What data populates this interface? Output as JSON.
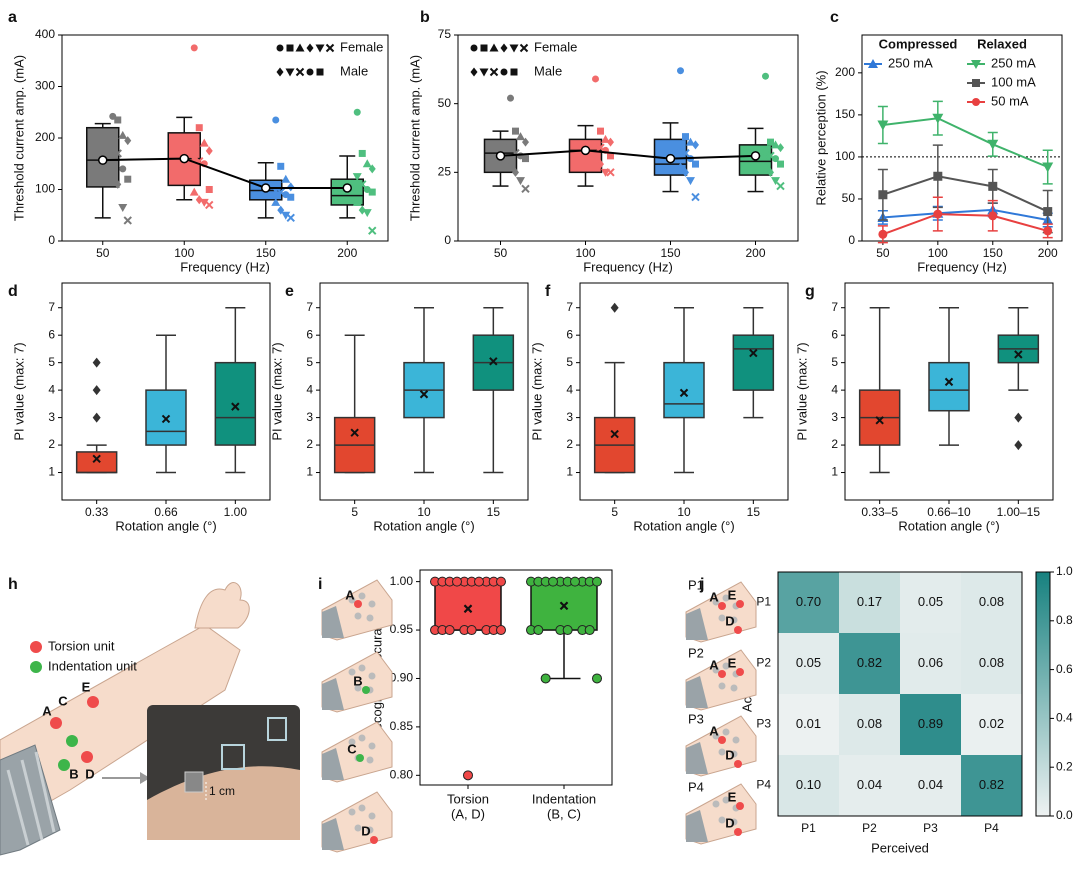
{
  "chart_data": [
    {
      "type": "box",
      "panel": "a",
      "ylabel": "Threshold current amp. (mA)",
      "xlabel": "Frequency (Hz)",
      "categories": [
        "50",
        "100",
        "150",
        "200"
      ],
      "colors": [
        "#7a7a7a",
        "#f26b6b",
        "#4a8fe0",
        "#4fbf7f"
      ],
      "ylim": [
        0,
        400
      ],
      "yticks": [
        0,
        100,
        200,
        300,
        400
      ],
      "mean_marker": "circle",
      "mean_line": true,
      "legend": [
        "Female",
        "Male"
      ],
      "boxes": [
        {
          "whisker_low": 45,
          "q1": 105,
          "median": 157,
          "q3": 220,
          "whisker_high": 228,
          "mean": 157
        },
        {
          "whisker_low": 80,
          "q1": 108,
          "median": 160,
          "q3": 210,
          "whisker_high": 240,
          "mean": 160
        },
        {
          "whisker_low": 45,
          "q1": 80,
          "median": 98,
          "q3": 118,
          "whisker_high": 152,
          "mean": 103
        },
        {
          "whisker_low": 45,
          "q1": 70,
          "median": 88,
          "q3": 120,
          "whisker_high": 165,
          "mean": 103
        }
      ],
      "points": [
        [
          242,
          235,
          205,
          195,
          180,
          170,
          140,
          120,
          115,
          110,
          65,
          40
        ],
        [
          375,
          220,
          190,
          175,
          160,
          155,
          150,
          100,
          95,
          80,
          75,
          70
        ],
        [
          235,
          145,
          120,
          105,
          100,
          95,
          90,
          85,
          75,
          60,
          50,
          45
        ],
        [
          250,
          170,
          150,
          140,
          125,
          110,
          100,
          95,
          75,
          60,
          55,
          20
        ]
      ]
    },
    {
      "type": "box",
      "panel": "b",
      "ylabel": "Threshold current amp. (mA)",
      "xlabel": "Frequency (Hz)",
      "categories": [
        "50",
        "100",
        "150",
        "200"
      ],
      "colors": [
        "#7a7a7a",
        "#f26b6b",
        "#4a8fe0",
        "#4fbf7f"
      ],
      "ylim": [
        0,
        75
      ],
      "yticks": [
        0,
        25,
        50,
        75
      ],
      "mean_marker": "circle",
      "mean_line": true,
      "legend": [
        "Female",
        "Male"
      ],
      "boxes": [
        {
          "whisker_low": 20,
          "q1": 25,
          "median": 32,
          "q3": 37,
          "whisker_high": 40,
          "mean": 31
        },
        {
          "whisker_low": 20,
          "q1": 25,
          "median": 33,
          "q3": 37,
          "whisker_high": 42,
          "mean": 33
        },
        {
          "whisker_low": 18,
          "q1": 24,
          "median": 28,
          "q3": 37,
          "whisker_high": 43,
          "mean": 30
        },
        {
          "whisker_low": 18,
          "q1": 24,
          "median": 29,
          "q3": 35,
          "whisker_high": 41,
          "mean": 31
        }
      ],
      "points": [
        [
          52,
          40,
          38,
          36,
          34,
          32,
          31,
          30,
          28,
          25,
          22,
          19
        ],
        [
          59,
          40,
          37,
          36,
          35,
          34,
          33,
          31,
          30,
          28,
          25,
          25
        ],
        [
          62,
          38,
          36,
          35,
          33,
          32,
          30,
          28,
          27,
          25,
          22,
          16
        ],
        [
          60,
          36,
          35,
          34,
          32,
          31,
          30,
          28,
          27,
          25,
          22,
          20
        ]
      ]
    },
    {
      "type": "line",
      "panel": "c",
      "ylabel": "Relative perception (%)",
      "xlabel": "Frequency (Hz)",
      "x": [
        50,
        100,
        150,
        200
      ],
      "xlim": [
        31,
        213
      ],
      "xticks": [
        50,
        100,
        150,
        200
      ],
      "ylim": [
        0,
        245
      ],
      "yticks": [
        0,
        50,
        100,
        150,
        200
      ],
      "reference_line": 100,
      "legend_titles": [
        "Compressed",
        "Relaxed"
      ],
      "series": [
        {
          "name": "250 mA",
          "color": "#2f78d8",
          "marker": "tri-up",
          "values": [
            28,
            33,
            37,
            25
          ],
          "errors": [
            8,
            8,
            8,
            8
          ]
        },
        {
          "name": "250 mA",
          "color": "#3fb36b",
          "marker": "tri-down",
          "values": [
            138,
            146,
            115,
            88
          ],
          "errors": [
            22,
            20,
            14,
            20
          ]
        },
        {
          "name": "100 mA",
          "color": "#555555",
          "marker": "square",
          "values": [
            55,
            77,
            65,
            35
          ],
          "errors": [
            30,
            37,
            20,
            25
          ]
        },
        {
          "name": "50 mA",
          "color": "#e84040",
          "marker": "circle",
          "values": [
            8,
            32,
            30,
            12
          ],
          "errors": [
            10,
            20,
            18,
            8
          ]
        }
      ]
    },
    {
      "type": "box",
      "panel": "d",
      "ylabel": "PI value (max: 7)",
      "xlabel": "Rotation angle (°)",
      "categories": [
        "0.33",
        "0.66",
        "1.00"
      ],
      "colors": [
        "#e2472f",
        "#3bb5d8",
        "#10917e"
      ],
      "ylim": [
        0,
        7.9
      ],
      "yticks": [
        1,
        2,
        3,
        4,
        5,
        6,
        7
      ],
      "mean_marker": "cross",
      "boxes": [
        {
          "whisker_low": 1,
          "q1": 1,
          "median": 1,
          "q3": 1.75,
          "whisker_high": 2,
          "mean": 1.5,
          "outliers": [
            3,
            4,
            5
          ]
        },
        {
          "whisker_low": 1,
          "q1": 2,
          "median": 2.5,
          "q3": 4,
          "whisker_high": 6,
          "mean": 2.95
        },
        {
          "whisker_low": 1,
          "q1": 2,
          "median": 3,
          "q3": 5,
          "whisker_high": 7,
          "mean": 3.4
        }
      ]
    },
    {
      "type": "box",
      "panel": "e",
      "ylabel": "PI value (max: 7)",
      "xlabel": "Rotation angle (°)",
      "categories": [
        "5",
        "10",
        "15"
      ],
      "colors": [
        "#e2472f",
        "#3bb5d8",
        "#10917e"
      ],
      "ylim": [
        0,
        7.9
      ],
      "yticks": [
        1,
        2,
        3,
        4,
        5,
        6,
        7
      ],
      "mean_marker": "cross",
      "boxes": [
        {
          "whisker_low": 1,
          "q1": 1,
          "median": 2,
          "q3": 3,
          "whisker_high": 6,
          "mean": 2.45
        },
        {
          "whisker_low": 1,
          "q1": 3,
          "median": 4,
          "q3": 5,
          "whisker_high": 7,
          "mean": 3.85
        },
        {
          "whisker_low": 1,
          "q1": 4,
          "median": 5,
          "q3": 6,
          "whisker_high": 7,
          "mean": 5.05
        }
      ]
    },
    {
      "type": "box",
      "panel": "f",
      "ylabel": "PI value (max: 7)",
      "xlabel": "Rotation angle (°)",
      "categories": [
        "5",
        "10",
        "15"
      ],
      "colors": [
        "#e2472f",
        "#3bb5d8",
        "#10917e"
      ],
      "ylim": [
        0,
        7.9
      ],
      "yticks": [
        1,
        2,
        3,
        4,
        5,
        6,
        7
      ],
      "mean_marker": "cross",
      "boxes": [
        {
          "whisker_low": 1,
          "q1": 1,
          "median": 2,
          "q3": 3,
          "whisker_high": 5,
          "mean": 2.4,
          "outliers": [
            7
          ]
        },
        {
          "whisker_low": 1,
          "q1": 3,
          "median": 3.5,
          "q3": 5,
          "whisker_high": 7,
          "mean": 3.9
        },
        {
          "whisker_low": 3,
          "q1": 4,
          "median": 5.5,
          "q3": 6,
          "whisker_high": 7,
          "mean": 5.35
        }
      ]
    },
    {
      "type": "box",
      "panel": "g",
      "ylabel": "PI value (max: 7)",
      "xlabel": "Rotation angle (°)",
      "categories": [
        "0.33–5",
        "0.66–10",
        "1.00–15"
      ],
      "colors": [
        "#e2472f",
        "#3bb5d8",
        "#10917e"
      ],
      "ylim": [
        0,
        7.9
      ],
      "yticks": [
        1,
        2,
        3,
        4,
        5,
        6,
        7
      ],
      "mean_marker": "cross",
      "boxes": [
        {
          "whisker_low": 1,
          "q1": 2,
          "median": 3,
          "q3": 4,
          "whisker_high": 7,
          "mean": 2.9
        },
        {
          "whisker_low": 2,
          "q1": 3.25,
          "median": 4,
          "q3": 5,
          "whisker_high": 7,
          "mean": 4.3
        },
        {
          "whisker_low": 4,
          "q1": 5,
          "median": 5.5,
          "q3": 6,
          "whisker_high": 7,
          "mean": 5.3,
          "outliers": [
            3,
            2
          ]
        }
      ]
    },
    {
      "type": "illustration",
      "panel": "h",
      "legend": [
        "Torsion unit",
        "Indentation unit"
      ],
      "sites": [
        "A",
        "B",
        "C",
        "D",
        "E"
      ],
      "scale": "1 cm"
    },
    {
      "type": "box",
      "panel": "i",
      "ylabel": "Recognition accuracy",
      "categories": [
        [
          "Torsion",
          "(A, D)"
        ],
        [
          "Indentation",
          "(B, C)"
        ]
      ],
      "colors": [
        "#f04848",
        "#3fb33f"
      ],
      "ylim": [
        0.79,
        1.012
      ],
      "yticks": [
        {
          "value": 0.8,
          "label": "0.80"
        },
        0.85,
        {
          "value": 0.9,
          "label": "0.90"
        },
        0.95,
        {
          "value": 1.0,
          "label": "1.00"
        }
      ],
      "mean_marker": "cross",
      "boxes": [
        {
          "whisker_low": 0.95,
          "q1": 0.95,
          "median": 1.0,
          "q3": 1.0,
          "whisker_high": 1.0,
          "mean": 0.972,
          "outliers": [
            0.8
          ]
        },
        {
          "whisker_low": 0.9,
          "q1": 0.95,
          "median": 1.0,
          "q3": 1.0,
          "whisker_high": 1.0,
          "mean": 0.975
        }
      ],
      "points": [
        [
          1.0,
          1.0,
          1.0,
          1.0,
          1.0,
          1.0,
          1.0,
          1.0,
          1.0,
          1.0,
          0.95,
          0.95,
          0.95,
          0.95,
          0.95,
          0.95,
          0.95,
          0.95
        ],
        [
          1.0,
          1.0,
          1.0,
          1.0,
          1.0,
          1.0,
          1.0,
          1.0,
          1.0,
          1.0,
          0.95,
          0.95,
          0.95,
          0.95,
          0.95,
          0.95,
          0.9,
          0.9
        ]
      ],
      "icons": [
        {
          "letters": [
            "A"
          ]
        },
        {
          "letters": [
            "B"
          ]
        },
        {
          "letters": [
            "C"
          ]
        },
        {
          "letters": [
            "D"
          ]
        }
      ]
    },
    {
      "type": "heatmap",
      "panel": "j",
      "xlabel": "Perceived",
      "ylabel": "Actual",
      "x_categories": [
        "P1",
        "P2",
        "P3",
        "P4"
      ],
      "y_categories": [
        "P1",
        "P2",
        "P3",
        "P4"
      ],
      "values": [
        [
          0.7,
          0.17,
          0.05,
          0.08
        ],
        [
          0.05,
          0.82,
          0.06,
          0.08
        ],
        [
          0.01,
          0.08,
          0.89,
          0.02
        ],
        [
          0.1,
          0.04,
          0.04,
          0.82
        ]
      ],
      "value_labels": [
        [
          "0.70",
          "0.17",
          "0.05",
          "0.08"
        ],
        [
          "0.05",
          "0.82",
          "0.06",
          "0.08"
        ],
        [
          "0.01",
          "0.08",
          "0.89",
          "0.02"
        ],
        [
          "0.10",
          "0.04",
          "0.04",
          "0.82"
        ]
      ],
      "clim": [
        0,
        1
      ],
      "color_low": "#eef2f2",
      "color_high": "#17817f",
      "colorbar_ticks": [
        {
          "value": 0,
          "label": "0.0"
        },
        {
          "value": 0.2,
          "label": "0.2"
        },
        {
          "value": 0.4,
          "label": "0.4"
        },
        {
          "value": 0.6,
          "label": "0.6"
        },
        {
          "value": 0.8,
          "label": "0.8"
        },
        {
          "value": 1,
          "label": "1.0"
        }
      ],
      "icons": [
        {
          "label": "P1",
          "letters": [
            "A",
            "E",
            "D"
          ]
        },
        {
          "label": "P2",
          "letters": [
            "A",
            "E"
          ]
        },
        {
          "label": "P3",
          "letters": [
            "A",
            "D"
          ]
        },
        {
          "label": "P4",
          "letters": [
            "E",
            "D"
          ]
        }
      ]
    }
  ]
}
